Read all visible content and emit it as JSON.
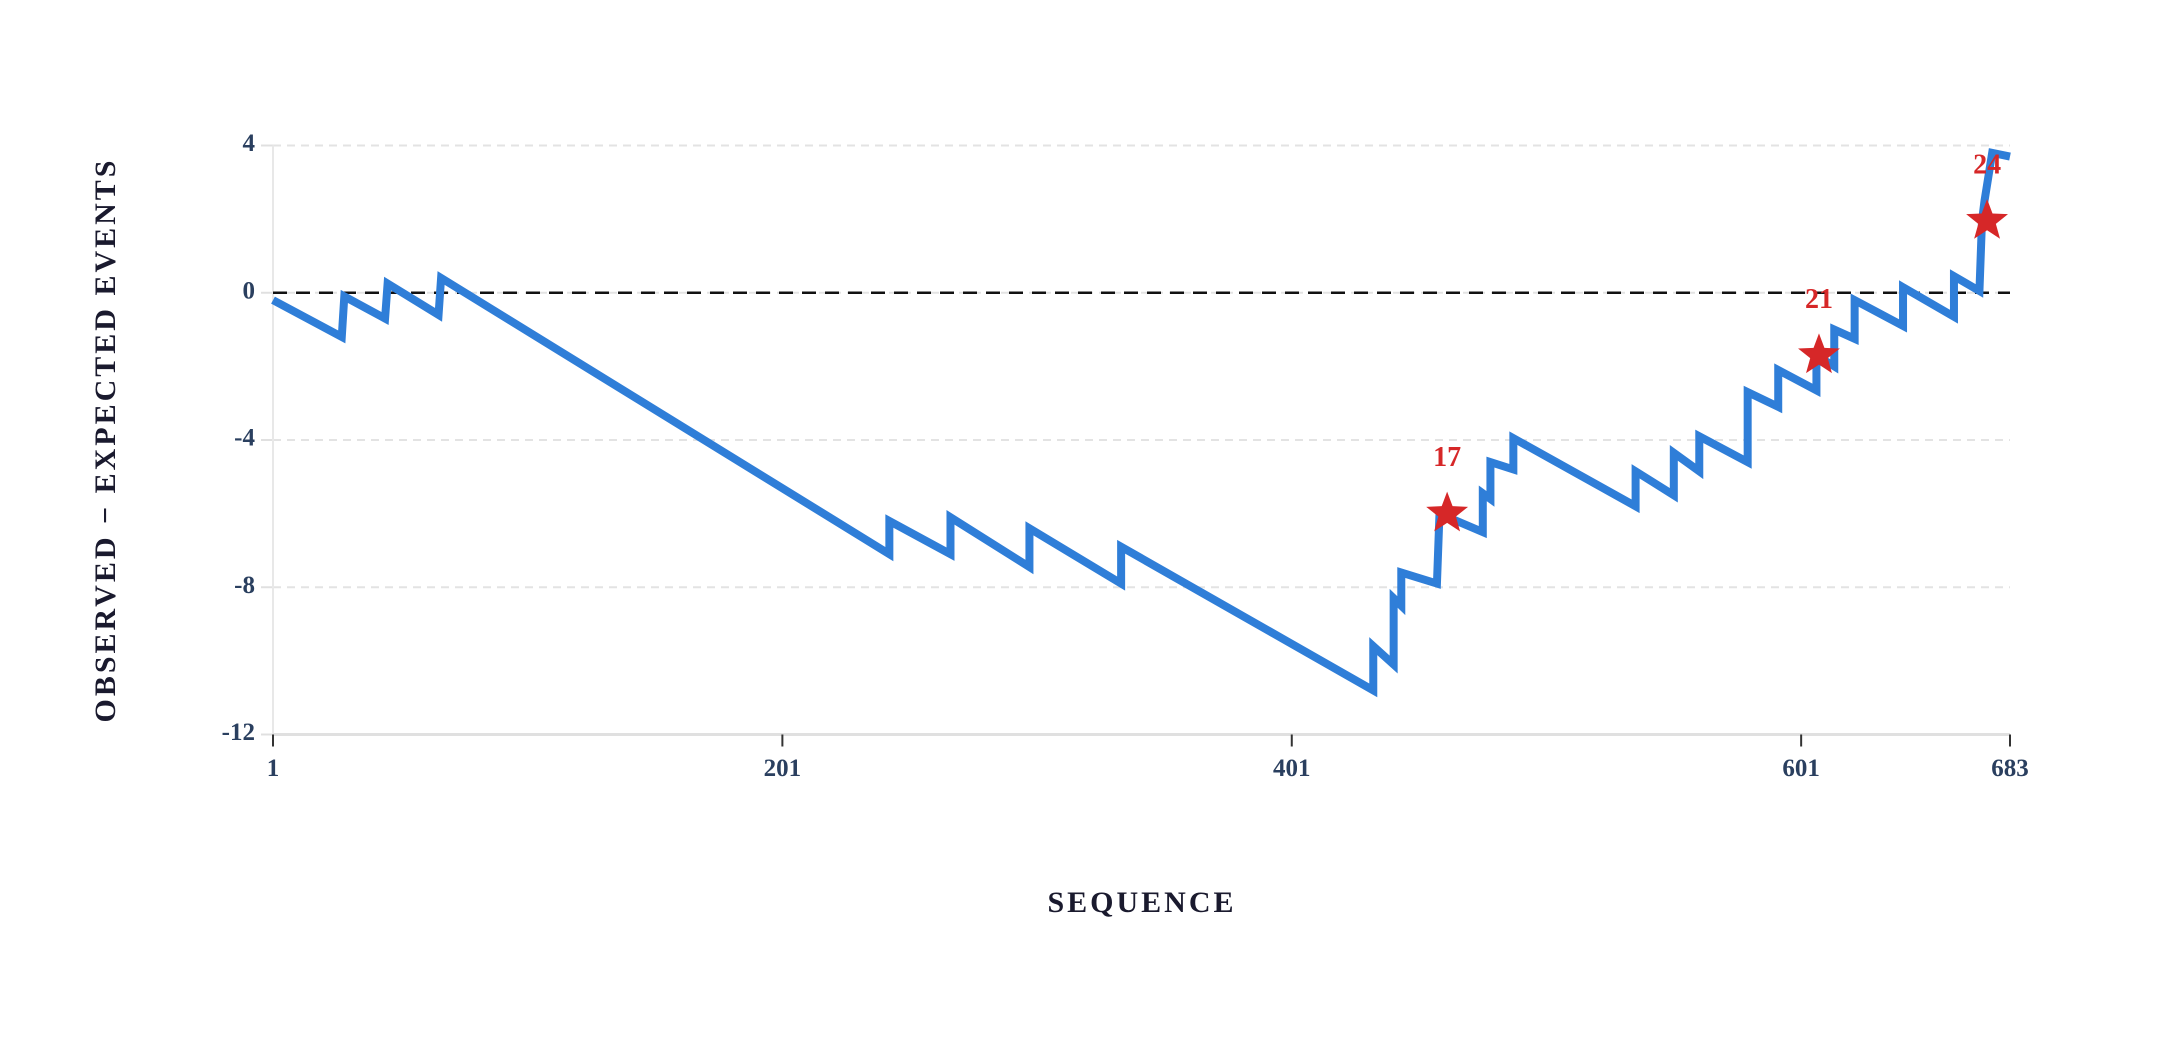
{
  "chart_data": {
    "type": "line",
    "x_label": "SEQUENCE",
    "y_label": "OBSERVED − EXPECTED EVENTS",
    "xlim": [
      1,
      683
    ],
    "xticks": [
      1,
      201,
      401,
      601,
      683
    ],
    "ylim": [
      -12,
      4
    ],
    "yticks": [
      -12,
      -8,
      -4,
      0,
      4
    ],
    "grid": true,
    "reference_line": 0,
    "series": [
      {
        "color": "#2f7ed8",
        "x": [
          1,
          28,
          29,
          45,
          46,
          66,
          67,
          243,
          243,
          267,
          267,
          298,
          298,
          334,
          334,
          433,
          433,
          441,
          441,
          444,
          444,
          458,
          459,
          476,
          476,
          479,
          479,
          488,
          488,
          536,
          536,
          551,
          551,
          561,
          561,
          580,
          580,
          592,
          592,
          607,
          607,
          614,
          614,
          622,
          622,
          641,
          641,
          661,
          661,
          671,
          672,
          673,
          676,
          683
        ],
        "values": [
          -0.2,
          -1.2,
          -0.1,
          -0.7,
          0.25,
          -0.6,
          0.4,
          -7.1,
          -6.2,
          -7.1,
          -6.1,
          -7.45,
          -6.4,
          -7.9,
          -6.9,
          -10.8,
          -9.6,
          -10.1,
          -8.3,
          -8.5,
          -7.6,
          -7.9,
          -6.0,
          -6.5,
          -5.45,
          -5.6,
          -4.6,
          -4.8,
          -3.95,
          -5.8,
          -4.85,
          -5.5,
          -4.35,
          -4.85,
          -3.9,
          -4.6,
          -2.7,
          -3.1,
          -2.1,
          -2.65,
          -1.7,
          -2.0,
          -1.0,
          -1.25,
          -0.2,
          -0.9,
          0.15,
          -0.65,
          0.45,
          0.05,
          1.95,
          2.5,
          3.8,
          3.7
        ]
      }
    ],
    "annotations": {
      "color": "#d62728",
      "x": [
        462,
        608,
        674
      ],
      "y": [
        -6.0,
        -1.7,
        1.95
      ],
      "labels": [
        "17",
        "21",
        "24"
      ]
    }
  }
}
